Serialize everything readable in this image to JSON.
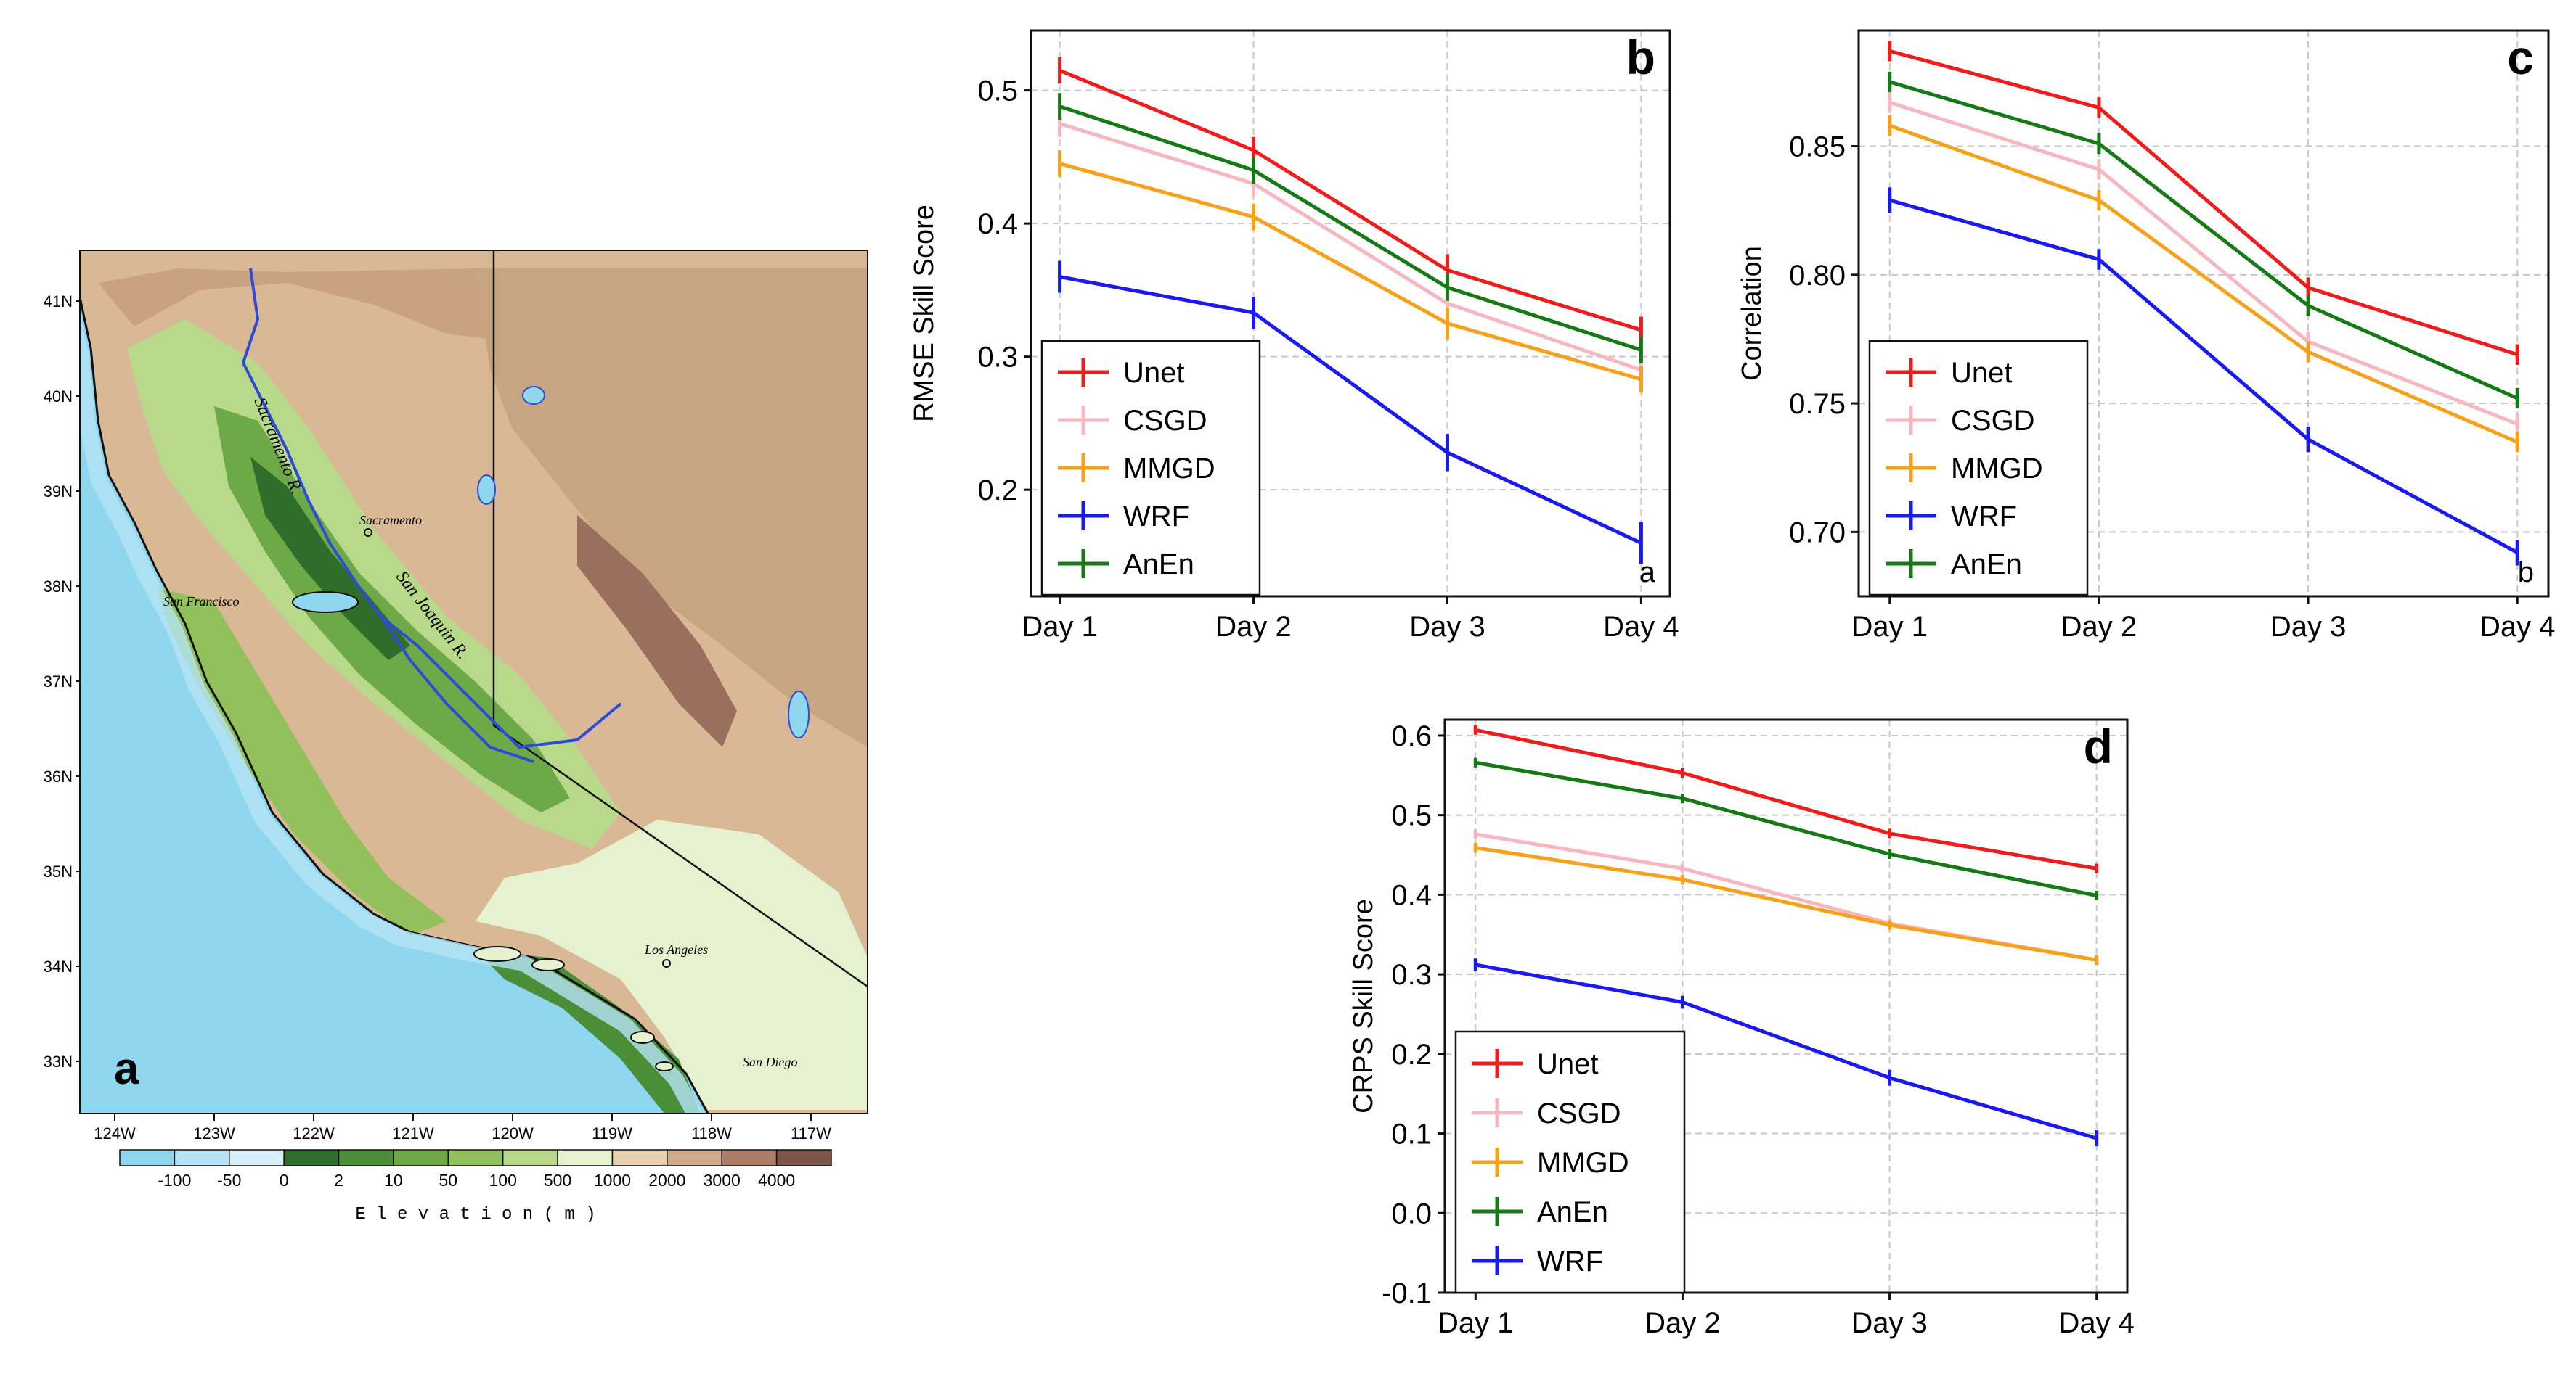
{
  "colors": {
    "Unet": "#ee1c1c",
    "CSGD": "#f6b7c1",
    "MMGD": "#f7a11b",
    "WRF": "#1a1aee",
    "AnEn": "#157a15",
    "grid": "#c8c8c8"
  },
  "map": {
    "panel_letter": "a",
    "lat_labels": [
      "41N",
      "40N",
      "39N",
      "38N",
      "37N",
      "36N",
      "35N",
      "34N",
      "33N"
    ],
    "lon_labels": [
      "124W",
      "123W",
      "122W",
      "121W",
      "120W",
      "119W",
      "118W",
      "117W"
    ],
    "colorbar_ticks": [
      "-100",
      "-50",
      "0",
      "2",
      "10",
      "50",
      "100",
      "500",
      "1000",
      "2000",
      "3000",
      "4000"
    ],
    "colorbar_colors": [
      "#8fd6ef",
      "#b5e3f5",
      "#d6f0fa",
      "#2f6e2a",
      "#4a8f38",
      "#6daa47",
      "#92c05b",
      "#b8d98a",
      "#e6f2cf",
      "#e8cfad",
      "#cfa98a",
      "#ad7d6a",
      "#7d5446"
    ],
    "colorbar_title": "E l e v a t i o n   ( m )",
    "places": [
      "Sacramento",
      "San Francisco",
      "Los Angeles",
      "San Diego"
    ],
    "rivers": [
      "Sacramento R.",
      "San Joaquin R."
    ]
  },
  "chart_data": [
    {
      "id": "b",
      "type": "line",
      "panel_letter": "b",
      "inner_letter": "a",
      "ylabel": "RMSE Skill Score",
      "xlabel": "",
      "categories": [
        "Day 1",
        "Day 2",
        "Day 3",
        "Day 4"
      ],
      "ylim": [
        0.12,
        0.545
      ],
      "yticks": [
        0.2,
        0.3,
        0.4,
        0.5
      ],
      "ytick_labels": [
        "0.2",
        "0.3",
        "0.4",
        "0.5"
      ],
      "grid": true,
      "legend_position": "lower-left",
      "legend_order": [
        "Unet",
        "CSGD",
        "MMGD",
        "WRF",
        "AnEn"
      ],
      "series": [
        {
          "name": "Unet",
          "values": [
            0.515,
            0.455,
            0.365,
            0.32
          ],
          "err": [
            0.01,
            0.01,
            0.012,
            0.01
          ]
        },
        {
          "name": "CSGD",
          "values": [
            0.475,
            0.43,
            0.34,
            0.29
          ],
          "err": [
            0.01,
            0.01,
            0.01,
            0.01
          ]
        },
        {
          "name": "MMGD",
          "values": [
            0.445,
            0.405,
            0.325,
            0.283
          ],
          "err": [
            0.01,
            0.01,
            0.012,
            0.01
          ]
        },
        {
          "name": "WRF",
          "values": [
            0.36,
            0.333,
            0.228,
            0.16
          ],
          "err": [
            0.012,
            0.012,
            0.014,
            0.016
          ]
        },
        {
          "name": "AnEn",
          "values": [
            0.488,
            0.44,
            0.352,
            0.305
          ],
          "err": [
            0.01,
            0.01,
            0.01,
            0.01
          ]
        }
      ]
    },
    {
      "id": "c",
      "type": "line",
      "panel_letter": "c",
      "inner_letter": "b",
      "ylabel": "Correlation",
      "xlabel": "",
      "categories": [
        "Day 1",
        "Day 2",
        "Day 3",
        "Day 4"
      ],
      "ylim": [
        0.675,
        0.895
      ],
      "yticks": [
        0.7,
        0.75,
        0.8,
        0.85
      ],
      "ytick_labels": [
        "0.70",
        "0.75",
        "0.80",
        "0.85"
      ],
      "grid": true,
      "legend_position": "lower-left",
      "legend_order": [
        "Unet",
        "CSGD",
        "MMGD",
        "WRF",
        "AnEn"
      ],
      "series": [
        {
          "name": "Unet",
          "values": [
            0.887,
            0.865,
            0.795,
            0.769
          ],
          "err": [
            0.004,
            0.004,
            0.004,
            0.004
          ]
        },
        {
          "name": "CSGD",
          "values": [
            0.867,
            0.841,
            0.774,
            0.742
          ],
          "err": [
            0.004,
            0.004,
            0.004,
            0.004
          ]
        },
        {
          "name": "MMGD",
          "values": [
            0.858,
            0.829,
            0.77,
            0.735
          ],
          "err": [
            0.004,
            0.004,
            0.004,
            0.004
          ]
        },
        {
          "name": "WRF",
          "values": [
            0.829,
            0.806,
            0.736,
            0.692
          ],
          "err": [
            0.005,
            0.004,
            0.005,
            0.005
          ]
        },
        {
          "name": "AnEn",
          "values": [
            0.875,
            0.851,
            0.788,
            0.752
          ],
          "err": [
            0.004,
            0.004,
            0.004,
            0.004
          ]
        }
      ]
    },
    {
      "id": "d",
      "type": "line",
      "panel_letter": "d",
      "ylabel": "CRPS Skill Score",
      "xlabel": "",
      "categories": [
        "Day 1",
        "Day 2",
        "Day 3",
        "Day 4"
      ],
      "ylim": [
        -0.1,
        0.62
      ],
      "yticks": [
        -0.1,
        0.0,
        0.1,
        0.2,
        0.3,
        0.4,
        0.5,
        0.6
      ],
      "ytick_labels": [
        "-0.1",
        "0.0",
        "0.1",
        "0.2",
        "0.3",
        "0.4",
        "0.5",
        "0.6"
      ],
      "grid": true,
      "legend_position": "lower-left",
      "legend_order": [
        "Unet",
        "CSGD",
        "MMGD",
        "AnEn",
        "WRF"
      ],
      "series": [
        {
          "name": "Unet",
          "values": [
            0.607,
            0.553,
            0.477,
            0.433
          ],
          "err": [
            0.006,
            0.006,
            0.006,
            0.006
          ]
        },
        {
          "name": "CSGD",
          "values": [
            0.476,
            0.433,
            0.364,
            0.318
          ],
          "err": [
            0.006,
            0.006,
            0.006,
            0.006
          ]
        },
        {
          "name": "MMGD",
          "values": [
            0.459,
            0.419,
            0.362,
            0.318
          ],
          "err": [
            0.006,
            0.006,
            0.006,
            0.006
          ]
        },
        {
          "name": "AnEn",
          "values": [
            0.566,
            0.521,
            0.451,
            0.399
          ],
          "err": [
            0.006,
            0.006,
            0.006,
            0.006
          ]
        },
        {
          "name": "WRF",
          "values": [
            0.312,
            0.265,
            0.17,
            0.094
          ],
          "err": [
            0.008,
            0.008,
            0.01,
            0.01
          ]
        }
      ]
    }
  ]
}
